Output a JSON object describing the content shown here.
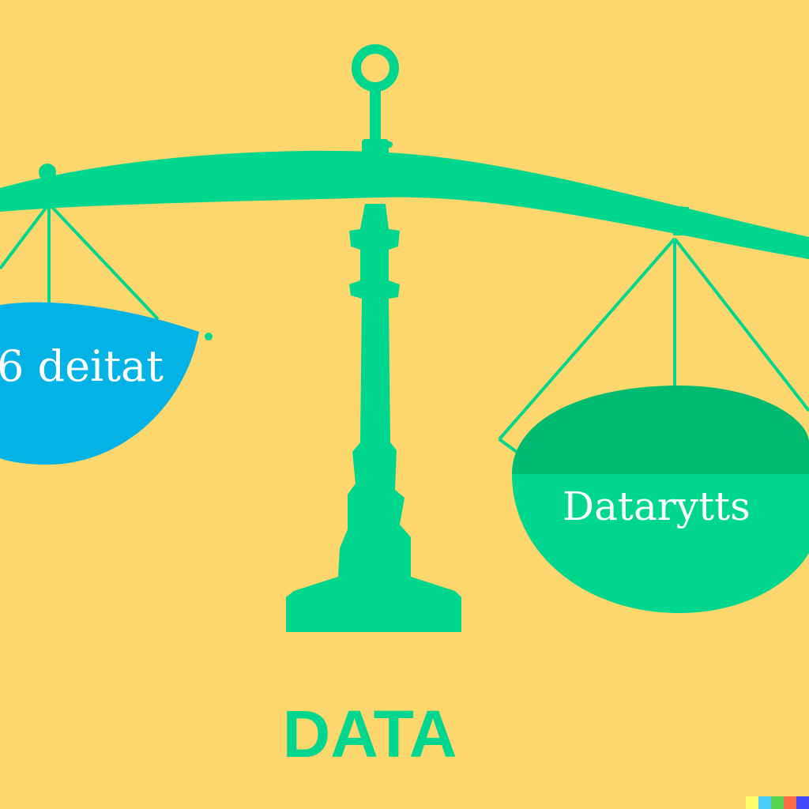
{
  "scene": {
    "left_pan_text": "6 deitat",
    "right_pan_text": "Datarytts",
    "bottom_text": "DATA"
  },
  "colors": {
    "background": "#fcd76d",
    "scale_green": "#00d68d",
    "right_pan_top": "#00bb70",
    "left_pan_blue": "#03b3e6",
    "label_white": "#ffffff",
    "watermark": [
      "#fdfd66",
      "#47cdfc",
      "#55d44f",
      "#fb6e43",
      "#4348fa"
    ]
  }
}
